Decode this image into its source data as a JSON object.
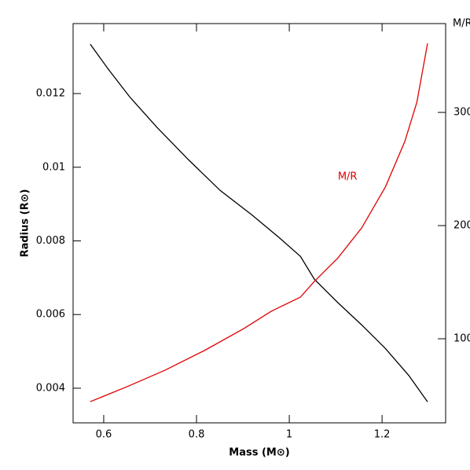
{
  "chart_data": {
    "type": "line",
    "xlabel": "Mass (M⊙)",
    "ylabel": "Radius (R⊙)",
    "y2label": "M/R",
    "xlim": [
      0.534,
      1.337
    ],
    "xticks": [
      0.6,
      0.8,
      1,
      1.2
    ],
    "ylim": [
      0.00306,
      0.0139
    ],
    "yticks": [
      0.004,
      0.006,
      0.008,
      0.01,
      0.012
    ],
    "y2lim": [
      25.7,
      378.5
    ],
    "y2ticks": [
      100,
      200,
      300
    ],
    "series": [
      {
        "color": "#000000",
        "x": [
          0.571,
          0.61,
          0.656,
          0.715,
          0.783,
          0.851,
          0.919,
          0.978,
          1.024,
          1.054,
          1.105,
          1.156,
          1.207,
          1.258,
          1.298
        ],
        "values": [
          0.01334,
          0.01266,
          0.01191,
          0.01108,
          0.0102,
          0.00937,
          0.00871,
          0.00809,
          0.00758,
          0.00696,
          0.00632,
          0.00572,
          0.00508,
          0.00434,
          0.00363
        ]
      },
      {
        "name": "M/R",
        "color": "#e00000",
        "axis": "y2",
        "x": [
          0.571,
          0.65,
          0.732,
          0.817,
          0.902,
          0.961,
          1.024,
          1.054,
          1.105,
          1.156,
          1.207,
          1.249,
          1.275,
          1.298
        ],
        "values": [
          44.4,
          57.6,
          72.2,
          89.6,
          109,
          124.3,
          136.8,
          150.7,
          171.5,
          197.9,
          234,
          274.3,
          309,
          361
        ]
      }
    ]
  }
}
